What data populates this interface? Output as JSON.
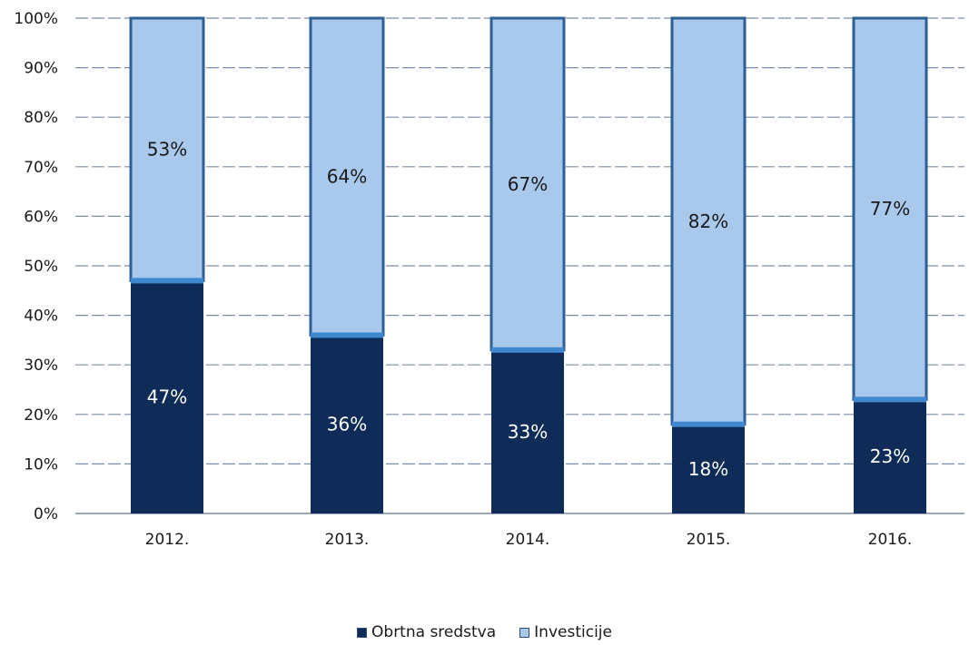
{
  "chart_data": {
    "type": "bar",
    "stacked": true,
    "categories": [
      "2012.",
      "2013.",
      "2014.",
      "2015.",
      "2016."
    ],
    "series": [
      {
        "name": "Obrtna sredstva",
        "values": [
          47,
          36,
          33,
          18,
          23
        ],
        "labels": [
          "47%",
          "36%",
          "33%",
          "18%",
          "23%"
        ]
      },
      {
        "name": "Investicije",
        "values": [
          53,
          64,
          67,
          82,
          77
        ],
        "labels": [
          "53%",
          "64%",
          "67%",
          "82%",
          "77%"
        ]
      }
    ],
    "y_ticks": [
      "0%",
      "10%",
      "20%",
      "30%",
      "40%",
      "50%",
      "60%",
      "70%",
      "80%",
      "90%",
      "100%"
    ],
    "ylim": [
      0,
      100
    ],
    "grid": true,
    "legend_position": "bottom",
    "title": "",
    "xlabel": "",
    "ylabel": ""
  },
  "colors": {
    "Obrtna sredstva": "#0e2c57",
    "Investicije": "#a8c8ec",
    "divider": "#3f88d0",
    "grid": "#7b8ea6"
  },
  "legend": {
    "items": [
      "Obrtna sredstva",
      "Investicije"
    ]
  }
}
